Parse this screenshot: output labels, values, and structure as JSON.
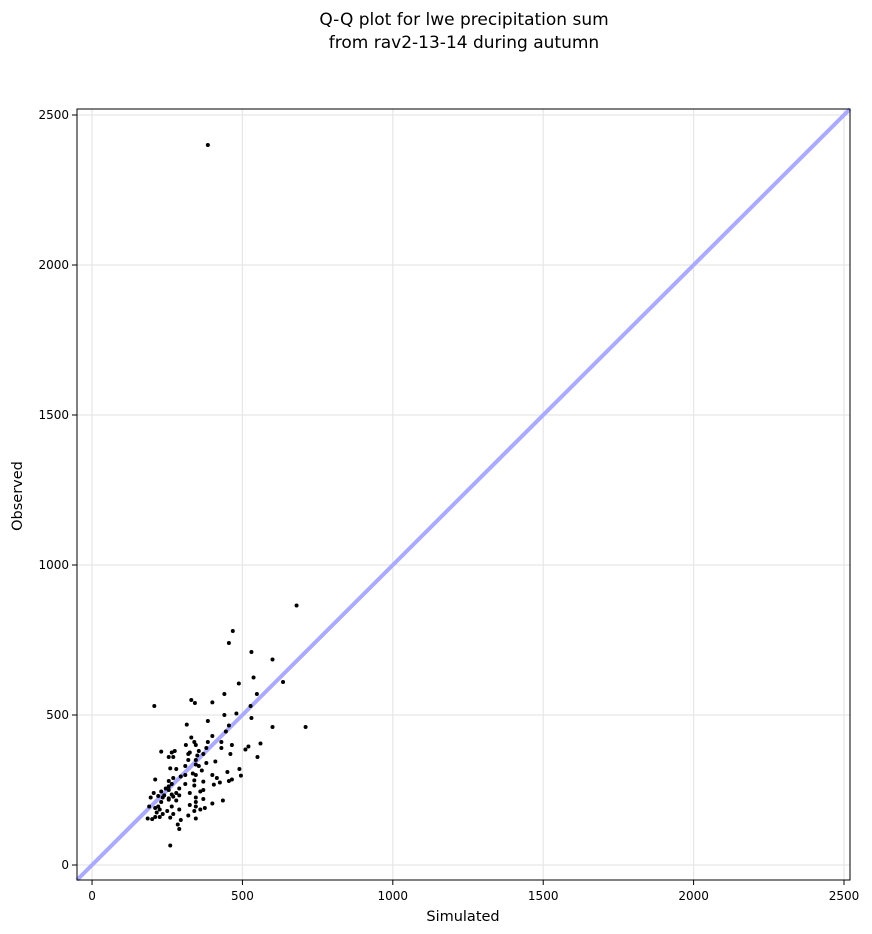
{
  "chart_data": {
    "type": "scatter",
    "title": [
      "Q-Q plot for lwe precipitation sum",
      "from rav2-13-14 during autumn"
    ],
    "xlabel": "Simulated",
    "ylabel": "Observed",
    "xlim": [
      -50,
      2520
    ],
    "ylim": [
      -50,
      2520
    ],
    "xticks": [
      0,
      500,
      1000,
      1500,
      2000,
      2500
    ],
    "yticks": [
      0,
      500,
      1000,
      1500,
      2000,
      2500
    ],
    "grid": true,
    "reference_line": {
      "kind": "y=x",
      "color": "#aaaaff"
    },
    "point_color": "#000000",
    "points": [
      [
        385,
        2400
      ],
      [
        680,
        865
      ],
      [
        468,
        780
      ],
      [
        455,
        740
      ],
      [
        530,
        710
      ],
      [
        600,
        685
      ],
      [
        635,
        610
      ],
      [
        488,
        605
      ],
      [
        537,
        625
      ],
      [
        548,
        570
      ],
      [
        440,
        570
      ],
      [
        400,
        542
      ],
      [
        330,
        550
      ],
      [
        342,
        540
      ],
      [
        207,
        530
      ],
      [
        527,
        530
      ],
      [
        480,
        505
      ],
      [
        440,
        500
      ],
      [
        530,
        490
      ],
      [
        385,
        480
      ],
      [
        455,
        465
      ],
      [
        315,
        468
      ],
      [
        600,
        460
      ],
      [
        710,
        460
      ],
      [
        445,
        445
      ],
      [
        400,
        430
      ],
      [
        330,
        425
      ],
      [
        430,
        410
      ],
      [
        340,
        410
      ],
      [
        385,
        410
      ],
      [
        345,
        400
      ],
      [
        312,
        400
      ],
      [
        465,
        400
      ],
      [
        560,
        405
      ],
      [
        520,
        395
      ],
      [
        380,
        390
      ],
      [
        430,
        390
      ],
      [
        510,
        385
      ],
      [
        355,
        380
      ],
      [
        275,
        380
      ],
      [
        325,
        375
      ],
      [
        320,
        370
      ],
      [
        230,
        378
      ],
      [
        265,
        375
      ],
      [
        370,
        370
      ],
      [
        350,
        365
      ],
      [
        460,
        370
      ],
      [
        550,
        360
      ],
      [
        255,
        360
      ],
      [
        270,
        360
      ],
      [
        345,
        350
      ],
      [
        320,
        350
      ],
      [
        410,
        345
      ],
      [
        380,
        340
      ],
      [
        345,
        335
      ],
      [
        310,
        330
      ],
      [
        355,
        330
      ],
      [
        490,
        320
      ],
      [
        260,
        322
      ],
      [
        280,
        320
      ],
      [
        365,
        315
      ],
      [
        450,
        310
      ],
      [
        335,
        305
      ],
      [
        345,
        300
      ],
      [
        310,
        300
      ],
      [
        400,
        300
      ],
      [
        495,
        298
      ],
      [
        295,
        295
      ],
      [
        270,
        290
      ],
      [
        415,
        290
      ],
      [
        465,
        285
      ],
      [
        210,
        285
      ],
      [
        455,
        280
      ],
      [
        340,
        282
      ],
      [
        255,
        280
      ],
      [
        370,
        278
      ],
      [
        425,
        275
      ],
      [
        310,
        270
      ],
      [
        265,
        270
      ],
      [
        405,
        268
      ],
      [
        340,
        265
      ],
      [
        255,
        262
      ],
      [
        245,
        255
      ],
      [
        290,
        255
      ],
      [
        255,
        250
      ],
      [
        370,
        250
      ],
      [
        230,
        245
      ],
      [
        360,
        245
      ],
      [
        325,
        240
      ],
      [
        205,
        240
      ],
      [
        280,
        240
      ],
      [
        265,
        235
      ],
      [
        290,
        232
      ],
      [
        240,
        232
      ],
      [
        220,
        230
      ],
      [
        270,
        228
      ],
      [
        235,
        225
      ],
      [
        195,
        225
      ],
      [
        345,
        225
      ],
      [
        255,
        222
      ],
      [
        370,
        220
      ],
      [
        255,
        218
      ],
      [
        280,
        215
      ],
      [
        435,
        215
      ],
      [
        345,
        210
      ],
      [
        230,
        210
      ],
      [
        400,
        205
      ],
      [
        325,
        200
      ],
      [
        190,
        195
      ],
      [
        345,
        195
      ],
      [
        220,
        195
      ],
      [
        265,
        195
      ],
      [
        210,
        190
      ],
      [
        375,
        190
      ],
      [
        225,
        185
      ],
      [
        290,
        185
      ],
      [
        360,
        185
      ],
      [
        250,
        180
      ],
      [
        340,
        180
      ],
      [
        215,
        175
      ],
      [
        235,
        170
      ],
      [
        270,
        170
      ],
      [
        320,
        165
      ],
      [
        210,
        160
      ],
      [
        225,
        160
      ],
      [
        260,
        158
      ],
      [
        345,
        155
      ],
      [
        185,
        155
      ],
      [
        200,
        153
      ],
      [
        295,
        150
      ],
      [
        285,
        135
      ],
      [
        290,
        120
      ],
      [
        260,
        65
      ]
    ]
  }
}
